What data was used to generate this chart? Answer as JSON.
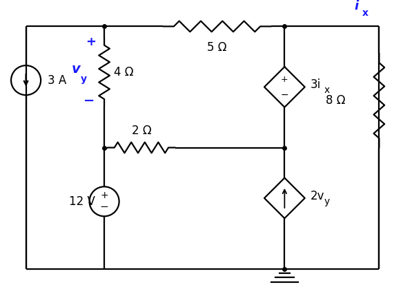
{
  "bg_color": "#ffffff",
  "line_color": "#000000",
  "blue_color": "#1a1aff",
  "line_width": 1.6,
  "fig_width": 5.84,
  "fig_height": 4.2,
  "dpi": 100,
  "labels": {
    "5ohm": "5 Ω",
    "4ohm": "4 Ω",
    "2ohm": "2 Ω",
    "8ohm": "8 Ω",
    "3A": "3 A",
    "12V": "12 V",
    "3ix": "3i",
    "3ix_sub": "x",
    "2vy": "2v",
    "2vy_sub": "y",
    "ix": "i",
    "ix_sub": "x",
    "vy": "v",
    "vy_sub": "y"
  }
}
